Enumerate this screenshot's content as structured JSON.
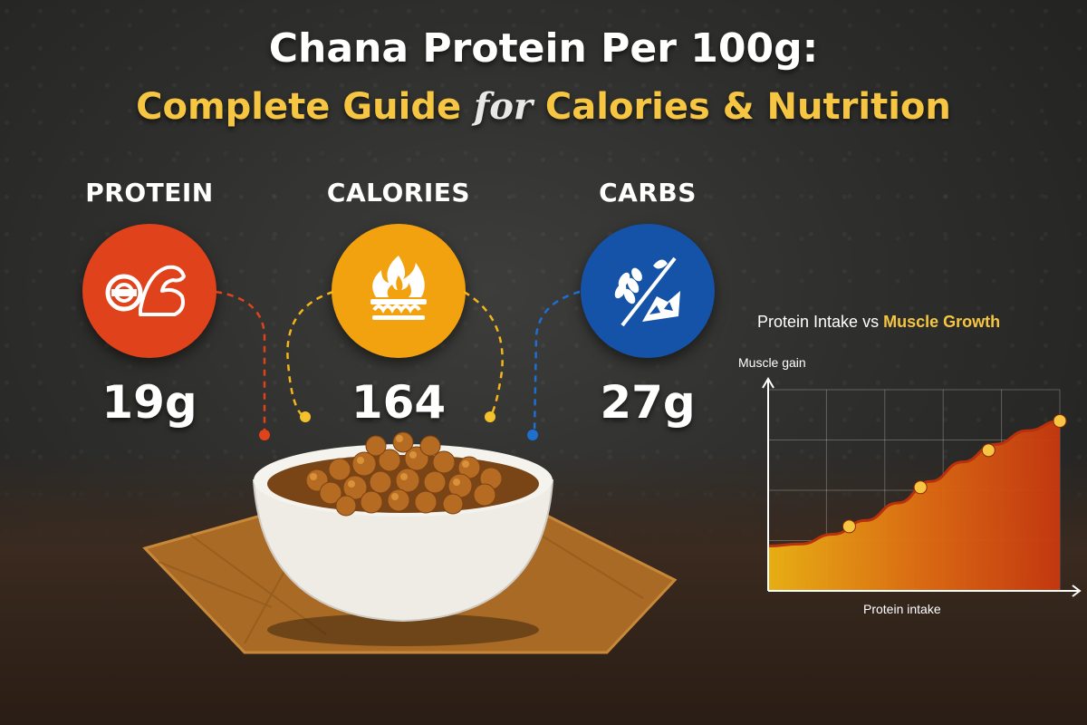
{
  "title": {
    "line1": "Chana Protein Per 100g:",
    "line2_part1": "Complete Guide ",
    "line2_for": "for",
    "line2_part2": " Calories & Nutrition"
  },
  "stats": [
    {
      "label": "PROTEIN",
      "value": "19g",
      "color": "#e0431b",
      "icon": "flexed-arm-icon"
    },
    {
      "label": "CALORIES",
      "value": "164",
      "color": "#f3a20f",
      "icon": "flame-icon"
    },
    {
      "label": "CARBS",
      "value": "27g",
      "color": "#1553a8",
      "icon": "wheat-icon"
    }
  ],
  "chart": {
    "title_part1": "Protein Intake vs ",
    "title_part2": "Muscle Growth",
    "ylabel": "Muscle gain",
    "xlabel": "Protein intake"
  },
  "chart_data": {
    "type": "area",
    "title": "Protein Intake vs Muscle Growth",
    "xlabel": "Protein intake",
    "ylabel": "Muscle gain",
    "x": [
      0,
      1,
      2,
      3,
      4,
      5,
      6,
      7,
      8,
      9
    ],
    "values": [
      1.0,
      1.1,
      1.6,
      2.3,
      3.2,
      4.3,
      5.3,
      6.2,
      6.9,
      7.4
    ],
    "highlighted_points": [
      [
        2.5,
        2.0
      ],
      [
        4.7,
        4.0
      ],
      [
        6.8,
        5.9
      ],
      [
        9.0,
        7.4
      ]
    ],
    "ylim": [
      0,
      9
    ],
    "xlim": [
      0,
      9
    ],
    "grid": true,
    "fill_colors": [
      "#f0b514",
      "#c9380f"
    ],
    "point_color": "#f6c642"
  }
}
